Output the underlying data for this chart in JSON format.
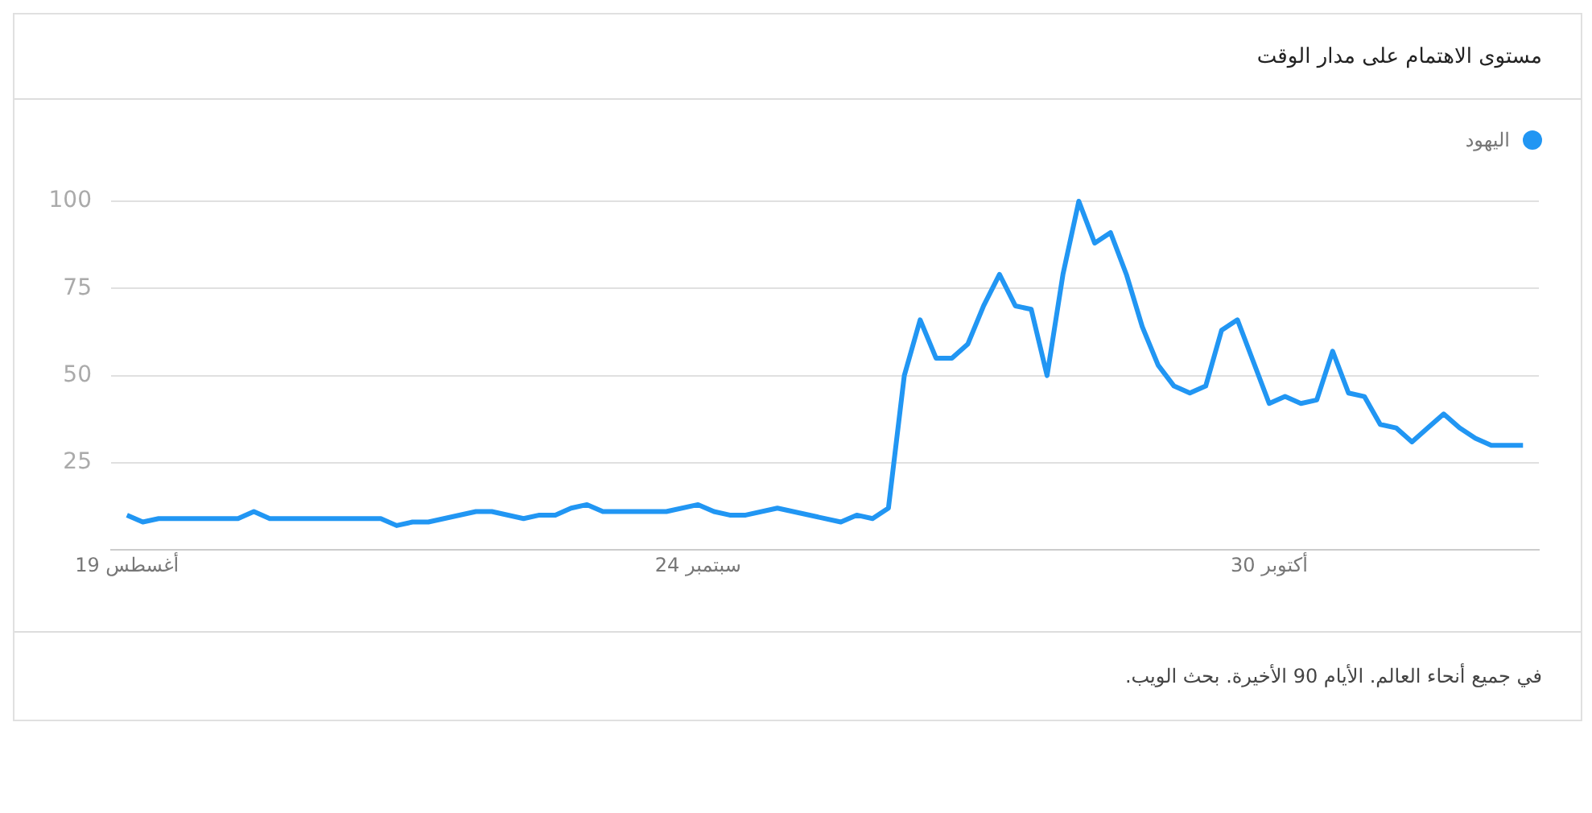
{
  "chart_data": {
    "type": "line",
    "title": "مستوى الاهتمام على مدار الوقت",
    "annotations": [
      "في جميع أنحاء العالم. الأيام 90 الأخيرة. بحث الويب."
    ],
    "x": [
      "--08-19",
      "--08-20",
      "--08-21",
      "--08-26",
      "--08-27",
      "--08-28",
      "--09-04",
      "--09-05",
      "--09-06",
      "--09-07",
      "--09-10",
      "--09-11",
      "--09-13",
      "--09-14",
      "--09-15",
      "--09-16",
      "--09-17",
      "--09-18",
      "--09-22",
      "--09-24",
      "--09-25",
      "--09-26",
      "--09-27",
      "--09-29",
      "--10-03",
      "--10-04",
      "--10-05",
      "--10-06",
      "--10-07",
      "--10-08",
      "--10-09",
      "--10-10",
      "--10-11",
      "--10-12",
      "--10-13",
      "--10-14",
      "--10-15",
      "--10-16",
      "--10-17",
      "--10-18",
      "--10-19",
      "--10-20",
      "--10-21",
      "--10-22",
      "--10-23",
      "--10-24",
      "--10-25",
      "--10-26",
      "--10-27",
      "--10-28",
      "--10-29",
      "--10-30",
      "--10-31",
      "--11-01",
      "--11-02",
      "--11-03",
      "--11-04",
      "--11-05",
      "--11-06",
      "--11-07",
      "--11-08",
      "--11-09",
      "--11-10",
      "--11-11",
      "--11-12",
      "--11-13",
      "--11-15"
    ],
    "series": [
      {
        "name": "اليهود",
        "color": "#2196f3",
        "values": [
          10,
          8,
          9,
          9,
          11,
          9,
          9,
          7,
          8,
          8,
          11,
          11,
          9,
          10,
          10,
          12,
          13,
          11,
          11,
          13,
          11,
          10,
          10,
          12,
          8,
          10,
          9,
          12,
          50,
          66,
          55,
          55,
          59,
          70,
          79,
          70,
          69,
          50,
          79,
          100,
          88,
          91,
          79,
          64,
          53,
          47,
          45,
          47,
          63,
          66,
          54,
          42,
          44,
          42,
          43,
          57,
          45,
          44,
          36,
          35,
          31,
          35,
          39,
          35,
          32,
          30,
          30
        ]
      }
    ],
    "xlim": [
      "--08-18",
      "--11-16"
    ],
    "xticks": [
      {
        "value": "--08-19",
        "label": "19 أغسطس"
      },
      {
        "value": "--09-24",
        "label": "24 سبتمبر"
      },
      {
        "value": "--10-30",
        "label": "30 أكتوبر"
      }
    ],
    "ylim": [
      0,
      100
    ],
    "yticks": [
      25,
      50,
      75,
      100
    ],
    "grid": "y",
    "legend": "top right",
    "marker": "none",
    "line_style": "solid"
  }
}
